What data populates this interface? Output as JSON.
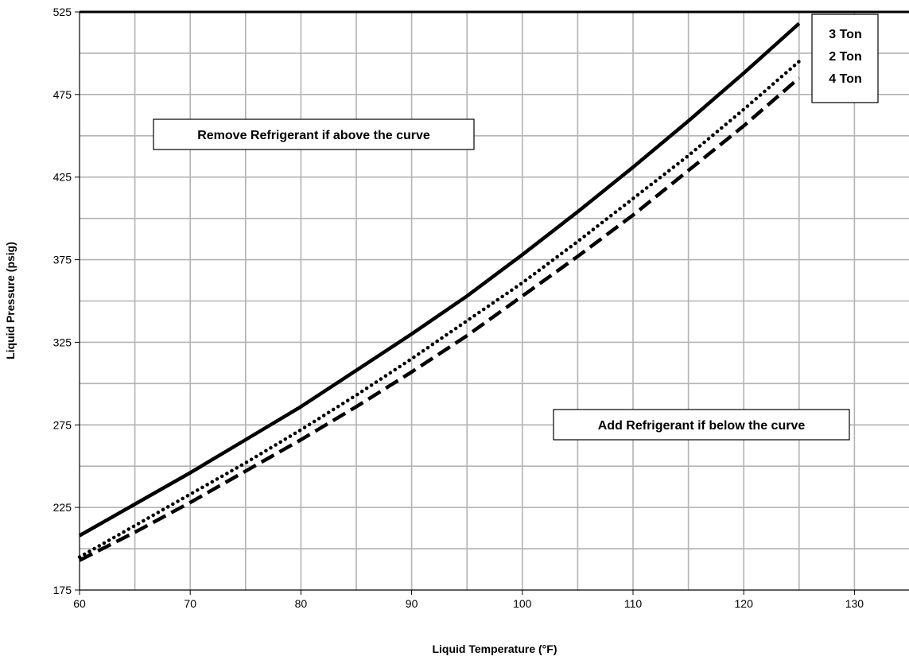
{
  "chart_data": {
    "type": "line",
    "title": "",
    "xlabel": "Liquid Temperature (°F)",
    "ylabel": "Liquid Pressure (psig)",
    "xlim": [
      60,
      135
    ],
    "ylim": [
      175,
      525
    ],
    "x_ticks": [
      60,
      70,
      80,
      90,
      100,
      110,
      120,
      130
    ],
    "y_ticks": [
      175,
      225,
      275,
      325,
      375,
      425,
      475,
      525
    ],
    "minor_grid_x_step": 5,
    "minor_grid_y_step": 25,
    "grid": true,
    "legend_position": "top-right",
    "x": [
      60,
      65,
      70,
      75,
      80,
      85,
      90,
      95,
      100,
      105,
      110,
      115,
      120,
      125
    ],
    "series": [
      {
        "name": "3 Ton",
        "line_style": "solid",
        "values": [
          208,
          227,
          246,
          266,
          286,
          308,
          330,
          353,
          378,
          404,
          431,
          459,
          488,
          518
        ]
      },
      {
        "name": "2 Ton",
        "line_style": "dotted",
        "values": [
          195,
          214,
          233,
          252,
          272,
          293,
          315,
          338,
          361,
          386,
          412,
          438,
          466,
          495
        ]
      },
      {
        "name": "4 Ton",
        "line_style": "dashed",
        "values": [
          193,
          210,
          228,
          247,
          266,
          286,
          307,
          329,
          353,
          377,
          402,
          429,
          456,
          485
        ]
      }
    ],
    "annotations": [
      {
        "text": "Remove Refrigerant if above the curve"
      },
      {
        "text": "Add Refrigerant if below the curve"
      }
    ]
  }
}
